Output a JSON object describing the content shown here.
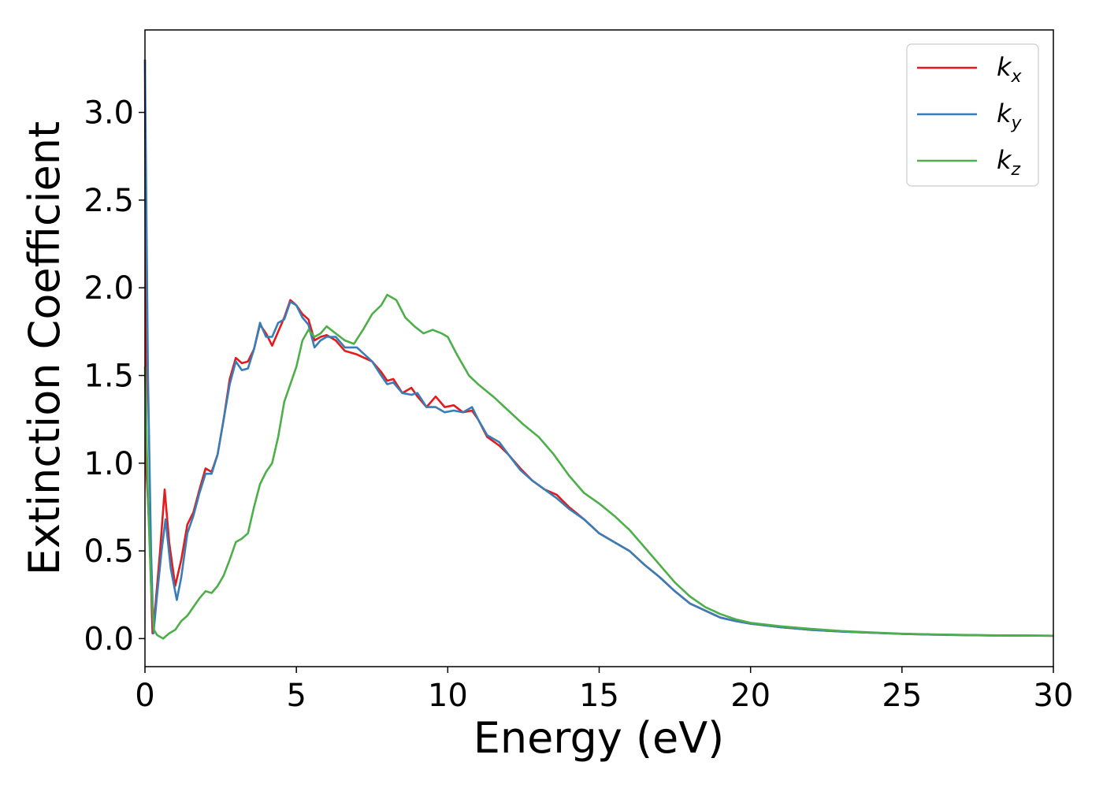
{
  "chart_data": {
    "type": "line",
    "title": "",
    "xlabel": "Energy (eV)",
    "ylabel": "Extinction Coefficient",
    "xlim": [
      0,
      30
    ],
    "ylim": [
      -0.16,
      3.47
    ],
    "xticks": [
      0,
      5,
      10,
      15,
      20,
      25,
      30
    ],
    "xtick_labels": [
      "0",
      "5",
      "10",
      "15",
      "20",
      "25",
      "30"
    ],
    "yticks": [
      0.0,
      0.5,
      1.0,
      1.5,
      2.0,
      2.5,
      3.0
    ],
    "ytick_labels": [
      "0.0",
      "0.5",
      "1.0",
      "1.5",
      "2.0",
      "2.5",
      "3.0"
    ],
    "grid": false,
    "legend_position": "top-right",
    "series": [
      {
        "name": "k",
        "subscript": "x",
        "color": "#e41a1c",
        "points": [
          [
            0,
            3.3
          ],
          [
            0.05,
            0.95
          ],
          [
            0.15,
            0.6
          ],
          [
            0.25,
            0.03
          ],
          [
            0.35,
            0.2
          ],
          [
            0.5,
            0.5
          ],
          [
            0.65,
            0.85
          ],
          [
            0.8,
            0.55
          ],
          [
            1.0,
            0.3
          ],
          [
            1.2,
            0.45
          ],
          [
            1.4,
            0.65
          ],
          [
            1.6,
            0.72
          ],
          [
            1.8,
            0.85
          ],
          [
            2.0,
            0.97
          ],
          [
            2.2,
            0.95
          ],
          [
            2.4,
            1.05
          ],
          [
            2.6,
            1.25
          ],
          [
            2.8,
            1.48
          ],
          [
            3.0,
            1.6
          ],
          [
            3.2,
            1.57
          ],
          [
            3.4,
            1.58
          ],
          [
            3.6,
            1.65
          ],
          [
            3.8,
            1.79
          ],
          [
            4.0,
            1.74
          ],
          [
            4.2,
            1.67
          ],
          [
            4.4,
            1.75
          ],
          [
            4.6,
            1.83
          ],
          [
            4.8,
            1.93
          ],
          [
            5.0,
            1.9
          ],
          [
            5.2,
            1.85
          ],
          [
            5.4,
            1.82
          ],
          [
            5.6,
            1.7
          ],
          [
            5.8,
            1.72
          ],
          [
            6.0,
            1.73
          ],
          [
            6.3,
            1.7
          ],
          [
            6.6,
            1.64
          ],
          [
            7.0,
            1.62
          ],
          [
            7.5,
            1.58
          ],
          [
            7.8,
            1.52
          ],
          [
            8.0,
            1.47
          ],
          [
            8.2,
            1.48
          ],
          [
            8.5,
            1.4
          ],
          [
            8.8,
            1.43
          ],
          [
            9.0,
            1.38
          ],
          [
            9.3,
            1.32
          ],
          [
            9.6,
            1.38
          ],
          [
            9.9,
            1.32
          ],
          [
            10.2,
            1.33
          ],
          [
            10.5,
            1.29
          ],
          [
            10.8,
            1.3
          ],
          [
            11.0,
            1.25
          ],
          [
            11.3,
            1.15
          ],
          [
            11.7,
            1.1
          ],
          [
            12.0,
            1.05
          ],
          [
            12.4,
            0.97
          ],
          [
            12.8,
            0.9
          ],
          [
            13.2,
            0.85
          ],
          [
            13.6,
            0.82
          ],
          [
            14.0,
            0.75
          ],
          [
            14.5,
            0.68
          ],
          [
            15.0,
            0.6
          ],
          [
            15.5,
            0.55
          ],
          [
            16.0,
            0.5
          ],
          [
            16.5,
            0.42
          ],
          [
            17.0,
            0.35
          ],
          [
            17.5,
            0.27
          ],
          [
            18.0,
            0.2
          ],
          [
            18.5,
            0.16
          ],
          [
            19.0,
            0.12
          ],
          [
            19.5,
            0.1
          ],
          [
            20.0,
            0.085
          ],
          [
            21.0,
            0.065
          ],
          [
            22.0,
            0.05
          ],
          [
            23.0,
            0.04
          ],
          [
            24.0,
            0.033
          ],
          [
            25.0,
            0.027
          ],
          [
            26.0,
            0.023
          ],
          [
            27.0,
            0.02
          ],
          [
            28.0,
            0.018
          ],
          [
            29.0,
            0.017
          ],
          [
            30.0,
            0.016
          ]
        ]
      },
      {
        "name": "k",
        "subscript": "y",
        "color": "#377eb8",
        "points": [
          [
            0,
            3.3
          ],
          [
            0.1,
            1.5
          ],
          [
            0.2,
            0.5
          ],
          [
            0.28,
            0.03
          ],
          [
            0.4,
            0.25
          ],
          [
            0.55,
            0.5
          ],
          [
            0.68,
            0.68
          ],
          [
            0.85,
            0.4
          ],
          [
            1.05,
            0.22
          ],
          [
            1.2,
            0.35
          ],
          [
            1.4,
            0.6
          ],
          [
            1.6,
            0.7
          ],
          [
            1.8,
            0.83
          ],
          [
            2.0,
            0.94
          ],
          [
            2.2,
            0.94
          ],
          [
            2.4,
            1.05
          ],
          [
            2.6,
            1.25
          ],
          [
            2.8,
            1.45
          ],
          [
            3.0,
            1.58
          ],
          [
            3.2,
            1.53
          ],
          [
            3.4,
            1.54
          ],
          [
            3.6,
            1.65
          ],
          [
            3.8,
            1.8
          ],
          [
            4.0,
            1.72
          ],
          [
            4.2,
            1.72
          ],
          [
            4.4,
            1.8
          ],
          [
            4.6,
            1.82
          ],
          [
            4.8,
            1.92
          ],
          [
            5.0,
            1.9
          ],
          [
            5.2,
            1.83
          ],
          [
            5.4,
            1.79
          ],
          [
            5.6,
            1.66
          ],
          [
            5.8,
            1.7
          ],
          [
            6.0,
            1.72
          ],
          [
            6.3,
            1.72
          ],
          [
            6.6,
            1.66
          ],
          [
            7.0,
            1.66
          ],
          [
            7.5,
            1.58
          ],
          [
            7.8,
            1.5
          ],
          [
            8.0,
            1.45
          ],
          [
            8.2,
            1.46
          ],
          [
            8.5,
            1.4
          ],
          [
            8.8,
            1.39
          ],
          [
            9.0,
            1.4
          ],
          [
            9.3,
            1.32
          ],
          [
            9.6,
            1.32
          ],
          [
            9.9,
            1.29
          ],
          [
            10.2,
            1.3
          ],
          [
            10.5,
            1.29
          ],
          [
            10.8,
            1.32
          ],
          [
            11.0,
            1.25
          ],
          [
            11.3,
            1.16
          ],
          [
            11.7,
            1.12
          ],
          [
            12.0,
            1.05
          ],
          [
            12.4,
            0.96
          ],
          [
            12.8,
            0.9
          ],
          [
            13.2,
            0.85
          ],
          [
            13.6,
            0.8
          ],
          [
            14.0,
            0.74
          ],
          [
            14.5,
            0.68
          ],
          [
            15.0,
            0.6
          ],
          [
            15.5,
            0.55
          ],
          [
            16.0,
            0.5
          ],
          [
            16.5,
            0.42
          ],
          [
            17.0,
            0.35
          ],
          [
            17.5,
            0.27
          ],
          [
            18.0,
            0.2
          ],
          [
            18.5,
            0.16
          ],
          [
            19.0,
            0.12
          ],
          [
            19.5,
            0.1
          ],
          [
            20.0,
            0.085
          ],
          [
            21.0,
            0.065
          ],
          [
            22.0,
            0.05
          ],
          [
            23.0,
            0.04
          ],
          [
            24.0,
            0.033
          ],
          [
            25.0,
            0.027
          ],
          [
            26.0,
            0.023
          ],
          [
            27.0,
            0.02
          ],
          [
            28.0,
            0.018
          ],
          [
            29.0,
            0.017
          ],
          [
            30.0,
            0.016
          ]
        ]
      },
      {
        "name": "k",
        "subscript": "z",
        "color": "#4daf4a",
        "points": [
          [
            0,
            1.55
          ],
          [
            0.1,
            0.8
          ],
          [
            0.2,
            0.3
          ],
          [
            0.3,
            0.05
          ],
          [
            0.4,
            0.02
          ],
          [
            0.6,
            0.0
          ],
          [
            0.8,
            0.03
          ],
          [
            1.0,
            0.05
          ],
          [
            1.2,
            0.1
          ],
          [
            1.4,
            0.13
          ],
          [
            1.6,
            0.18
          ],
          [
            1.8,
            0.23
          ],
          [
            2.0,
            0.27
          ],
          [
            2.2,
            0.26
          ],
          [
            2.4,
            0.3
          ],
          [
            2.6,
            0.36
          ],
          [
            2.8,
            0.45
          ],
          [
            3.0,
            0.55
          ],
          [
            3.2,
            0.57
          ],
          [
            3.4,
            0.6
          ],
          [
            3.6,
            0.75
          ],
          [
            3.8,
            0.88
          ],
          [
            4.0,
            0.95
          ],
          [
            4.2,
            1.0
          ],
          [
            4.4,
            1.15
          ],
          [
            4.6,
            1.35
          ],
          [
            4.8,
            1.45
          ],
          [
            5.0,
            1.55
          ],
          [
            5.2,
            1.7
          ],
          [
            5.4,
            1.76
          ],
          [
            5.6,
            1.72
          ],
          [
            5.8,
            1.74
          ],
          [
            6.0,
            1.78
          ],
          [
            6.3,
            1.74
          ],
          [
            6.6,
            1.7
          ],
          [
            6.9,
            1.68
          ],
          [
            7.2,
            1.76
          ],
          [
            7.5,
            1.85
          ],
          [
            7.8,
            1.9
          ],
          [
            8.0,
            1.96
          ],
          [
            8.3,
            1.93
          ],
          [
            8.6,
            1.83
          ],
          [
            8.9,
            1.78
          ],
          [
            9.2,
            1.74
          ],
          [
            9.5,
            1.76
          ],
          [
            9.8,
            1.74
          ],
          [
            10.0,
            1.72
          ],
          [
            10.3,
            1.62
          ],
          [
            10.7,
            1.5
          ],
          [
            11.0,
            1.45
          ],
          [
            11.5,
            1.38
          ],
          [
            12.0,
            1.3
          ],
          [
            12.5,
            1.22
          ],
          [
            13.0,
            1.15
          ],
          [
            13.5,
            1.05
          ],
          [
            14.0,
            0.93
          ],
          [
            14.5,
            0.83
          ],
          [
            15.0,
            0.77
          ],
          [
            15.5,
            0.7
          ],
          [
            16.0,
            0.62
          ],
          [
            16.5,
            0.52
          ],
          [
            17.0,
            0.42
          ],
          [
            17.5,
            0.32
          ],
          [
            18.0,
            0.24
          ],
          [
            18.5,
            0.18
          ],
          [
            19.0,
            0.14
          ],
          [
            19.5,
            0.11
          ],
          [
            20.0,
            0.09
          ],
          [
            21.0,
            0.07
          ],
          [
            22.0,
            0.055
          ],
          [
            23.0,
            0.043
          ],
          [
            24.0,
            0.035
          ],
          [
            25.0,
            0.028
          ],
          [
            26.0,
            0.024
          ],
          [
            27.0,
            0.021
          ],
          [
            28.0,
            0.019
          ],
          [
            29.0,
            0.017
          ],
          [
            30.0,
            0.016
          ]
        ]
      }
    ]
  }
}
